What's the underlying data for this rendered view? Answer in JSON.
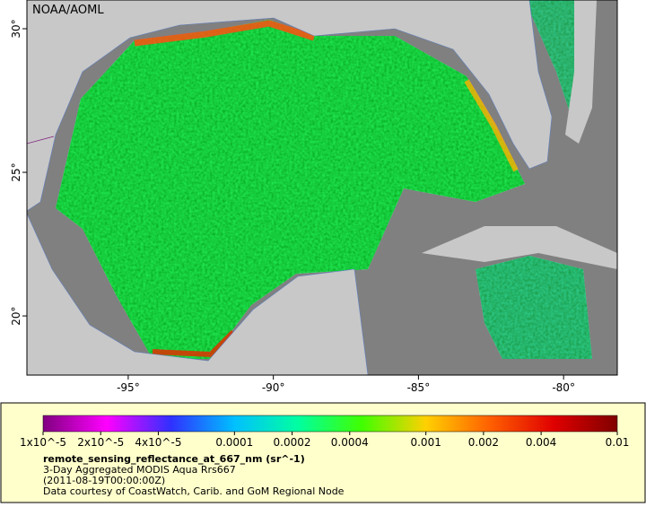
{
  "map": {
    "credit": "NOAA/AOML",
    "lon_range": [
      -98.49,
      -78.15
    ],
    "lat_range": [
      17.94,
      31.0
    ],
    "lat_ticks": [
      {
        "value": 30,
        "label": "30°"
      },
      {
        "value": 25,
        "label": "25°"
      },
      {
        "value": 20,
        "label": "20°"
      }
    ],
    "lon_ticks": [
      {
        "value": -95,
        "label": "-95°"
      },
      {
        "value": -90,
        "label": "-90°"
      },
      {
        "value": -85,
        "label": "-85°"
      },
      {
        "value": -80,
        "label": "-80°"
      }
    ]
  },
  "legend": {
    "scale": "log",
    "range": [
      1e-05,
      0.01
    ],
    "colors": [
      "#800080",
      "#ff00ff",
      "#3030ff",
      "#00c0ff",
      "#00ffa0",
      "#40ff00",
      "#ffd000",
      "#ff6000",
      "#e00000",
      "#800000"
    ],
    "ticks": [
      {
        "value": 1e-05,
        "label": "1x10^-5"
      },
      {
        "value": 2e-05,
        "label": "2x10^-5"
      },
      {
        "value": 4e-05,
        "label": "4x10^-5"
      },
      {
        "value": 0.0001,
        "label": "0.0001"
      },
      {
        "value": 0.0002,
        "label": "0.0002"
      },
      {
        "value": 0.0004,
        "label": "0.0004"
      },
      {
        "value": 0.001,
        "label": "0.001"
      },
      {
        "value": 0.002,
        "label": "0.002"
      },
      {
        "value": 0.004,
        "label": "0.004"
      },
      {
        "value": 0.01,
        "label": "0.01"
      }
    ],
    "variable": "remote_sensing_reflectance_at_667_nm (sr^-1)",
    "lines": [
      "3-Day Aggregated MODIS Aqua Rrs667",
      "(2011-08-19T00:00:00Z)",
      "Data courtesy of CoastWatch, Carib. and GoM Regional Node"
    ]
  }
}
